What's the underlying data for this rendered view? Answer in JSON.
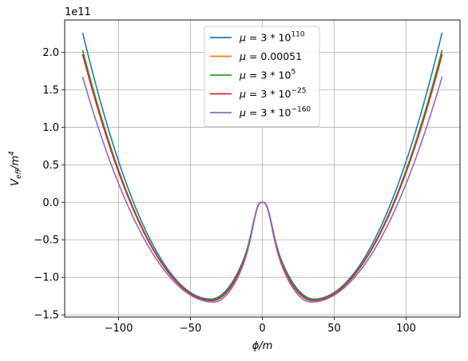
{
  "chart_data": {
    "type": "line",
    "title": "",
    "xlabel": "ϕ/m",
    "ylabel_main": "V",
    "ylabel_sub": "eff",
    "ylabel_tail": "/m",
    "ylabel_sup": "4",
    "y_scale_label": "1e11",
    "y_scale": 100000000000.0,
    "xlim": [
      -137.5,
      137.5
    ],
    "ylim": [
      -1.53,
      2.43
    ],
    "x_ticks": [
      -100,
      -50,
      0,
      50,
      100
    ],
    "x_tick_labels": [
      "−100",
      "−50",
      "0",
      "50",
      "100"
    ],
    "y_ticks": [
      -1.5,
      -1.0,
      -0.5,
      0.0,
      0.5,
      1.0,
      1.5,
      2.0
    ],
    "y_tick_labels": [
      "−1.5",
      "−1.0",
      "−0.5",
      "0.0",
      "0.5",
      "1.0",
      "1.5",
      "2.0"
    ],
    "grid": true,
    "legend_placement": "top-center",
    "x_range": [
      -125,
      125
    ],
    "series": [
      {
        "mu": "3",
        "exp": "110",
        "name": "μ = 3 * 10^110",
        "color": "#1f77b4",
        "endpoint_value": 2.26,
        "min_value": -1.29,
        "min_x": 36
      },
      {
        "mu": "0.00051",
        "exp": "",
        "name": "μ = 0.00051",
        "color": "#ff7f0e",
        "endpoint_value": 1.98,
        "min_value": -1.31,
        "min_x": 35
      },
      {
        "mu": "3",
        "exp": "5",
        "name": "μ = 3 * 10^5",
        "color": "#2ca02c",
        "endpoint_value": 2.03,
        "min_value": -1.3,
        "min_x": 35.5
      },
      {
        "mu": "3",
        "exp": "−25",
        "name": "μ = 3 * 10^−25",
        "color": "#d62728",
        "endpoint_value": 1.97,
        "min_value": -1.31,
        "min_x": 35
      },
      {
        "mu": "3",
        "exp": "−160",
        "name": "μ = 3 * 10^−160",
        "color": "#9467bd",
        "endpoint_value": 1.67,
        "min_value": -1.33,
        "min_x": 34
      }
    ]
  }
}
